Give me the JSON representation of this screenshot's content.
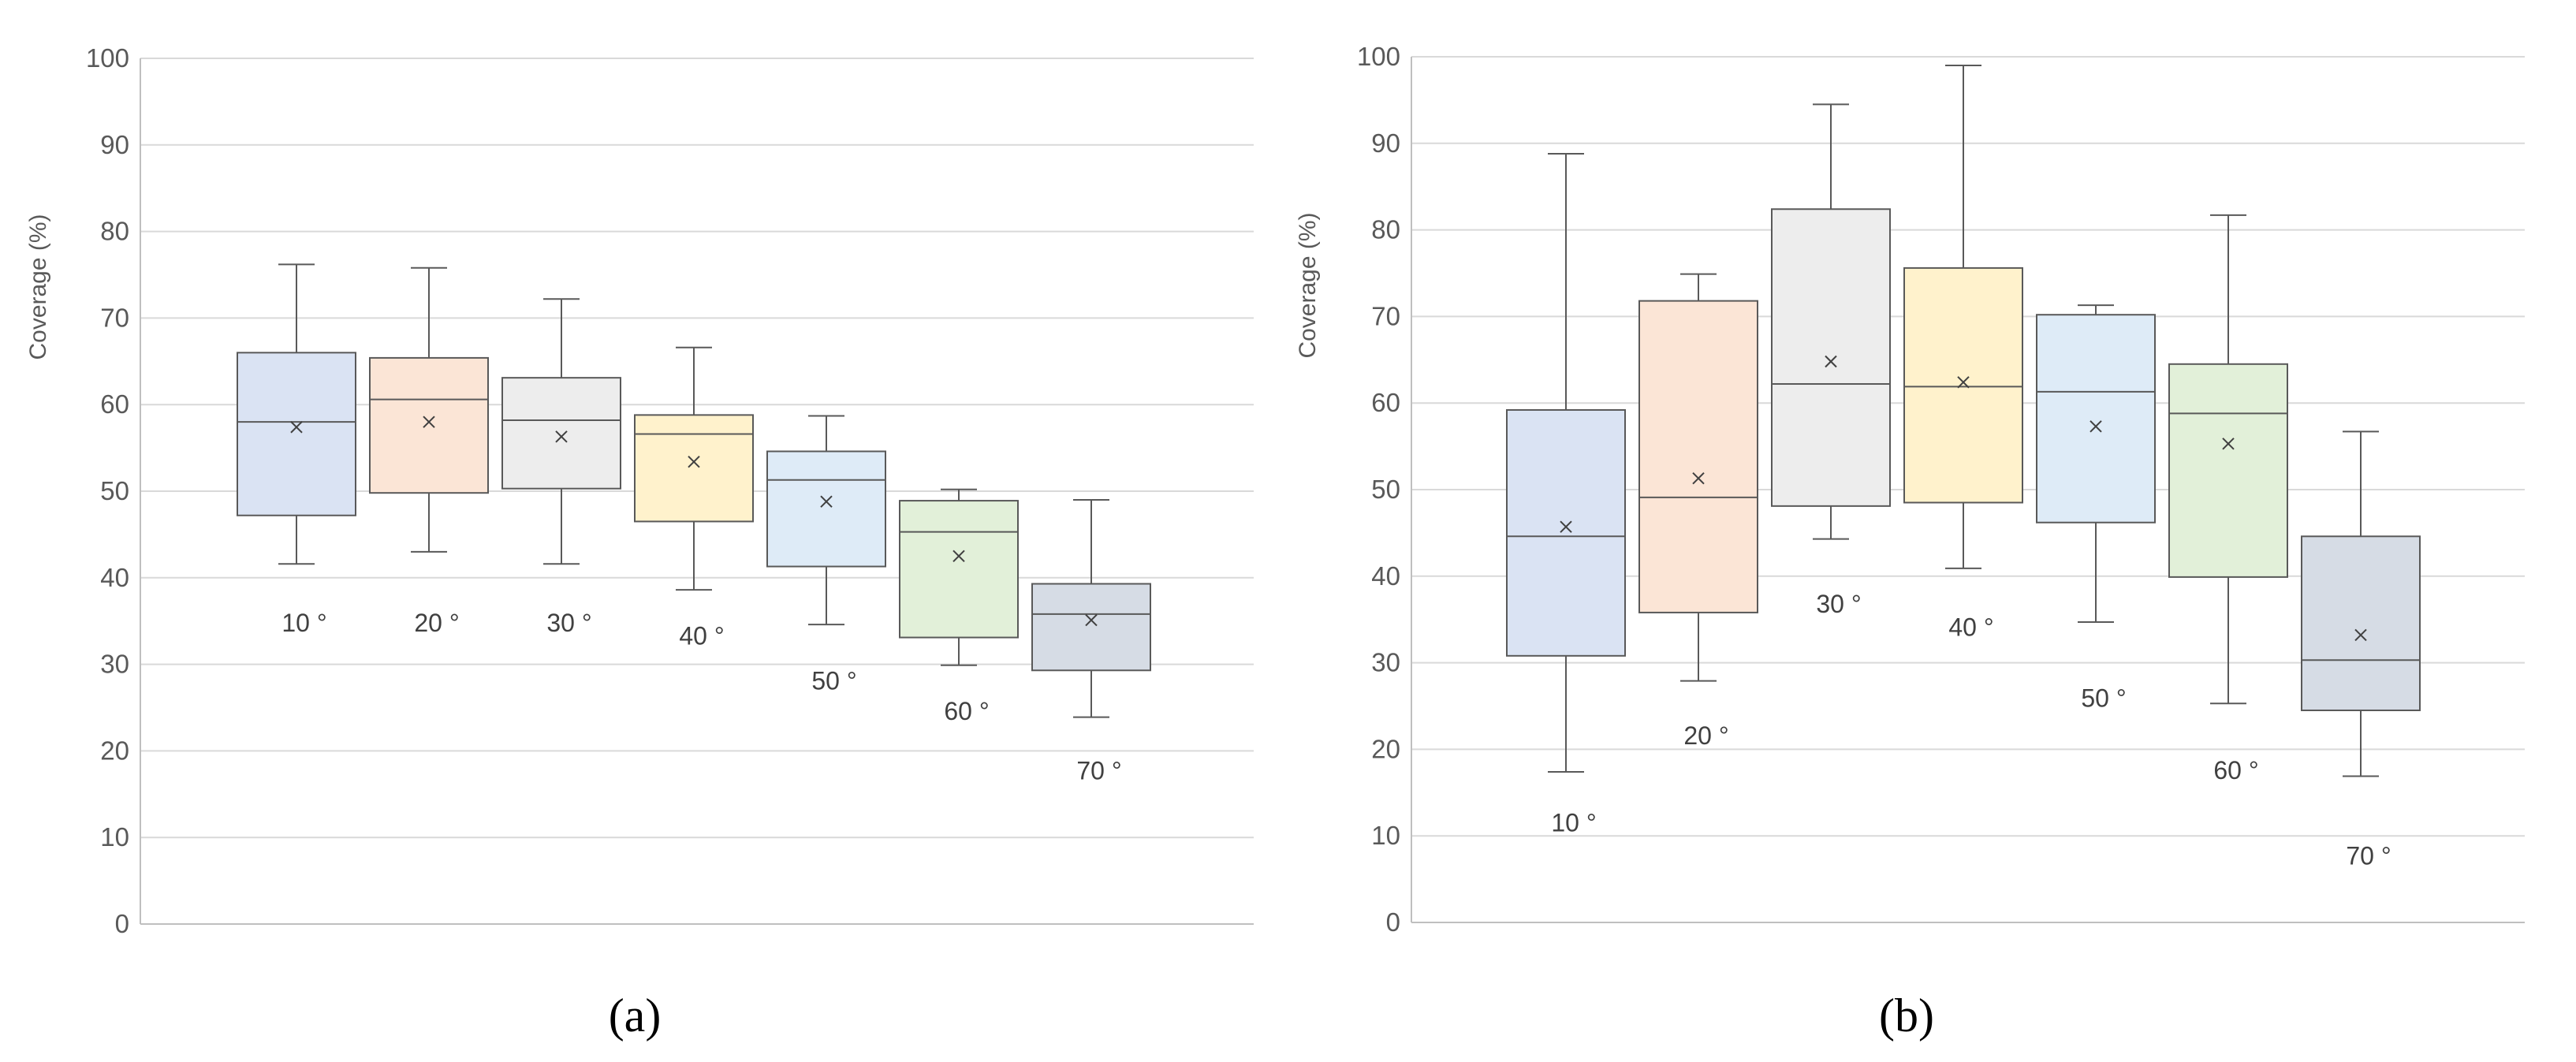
{
  "chart_data": [
    {
      "type": "boxplot",
      "panel_label": "(a)",
      "title": "",
      "xlabel": "",
      "ylabel": "Coverage (%)",
      "ylim": [
        0,
        100
      ],
      "yticks": [
        0,
        10,
        20,
        30,
        40,
        50,
        60,
        70,
        80,
        90,
        100
      ],
      "grid": true,
      "categories": [
        "10 °",
        "20 °",
        "30 °",
        "40 °",
        "50 °",
        "60 °",
        "70 °"
      ],
      "colors": [
        "#dae3f3",
        "#fbe5d6",
        "#ededed",
        "#fff2cc",
        "#deebf7",
        "#e2f0d9",
        "#d6dce5"
      ],
      "boxes": [
        {
          "min": 41.6,
          "q1": 47.2,
          "median": 58.0,
          "q3": 66.0,
          "max": 76.2,
          "mean": 57.4,
          "label_value": 34.8
        },
        {
          "min": 43.0,
          "q1": 49.8,
          "median": 60.6,
          "q3": 65.4,
          "max": 75.8,
          "mean": 58.0,
          "label_value": 34.8
        },
        {
          "min": 41.6,
          "q1": 50.3,
          "median": 58.2,
          "q3": 63.1,
          "max": 72.2,
          "mean": 56.3,
          "label_value": 34.8
        },
        {
          "min": 38.6,
          "q1": 46.5,
          "median": 56.6,
          "q3": 58.8,
          "max": 66.6,
          "mean": 53.4,
          "label_value": 33.3
        },
        {
          "min": 34.6,
          "q1": 41.3,
          "median": 51.3,
          "q3": 54.6,
          "max": 58.7,
          "mean": 48.8,
          "label_value": 28.1
        },
        {
          "min": 29.9,
          "q1": 33.1,
          "median": 45.3,
          "q3": 48.9,
          "max": 50.2,
          "mean": 42.5,
          "label_value": 24.6
        },
        {
          "min": 23.9,
          "q1": 29.3,
          "median": 35.8,
          "q3": 39.3,
          "max": 49.0,
          "mean": 35.1,
          "label_value": 17.7
        }
      ]
    },
    {
      "type": "boxplot",
      "panel_label": "(b)",
      "title": "",
      "xlabel": "",
      "ylabel": "Coverage (%)",
      "ylim": [
        0,
        100
      ],
      "yticks": [
        0,
        10,
        20,
        30,
        40,
        50,
        60,
        70,
        80,
        90,
        100
      ],
      "grid": true,
      "categories": [
        "10 °",
        "20 °",
        "30 °",
        "40 °",
        "50 °",
        "60 °",
        "70 °"
      ],
      "colors": [
        "#dae3f3",
        "#fbe5d6",
        "#ededed",
        "#fff2cc",
        "#deebf7",
        "#e2f0d9",
        "#d6dce5"
      ],
      "boxes": [
        {
          "min": 17.4,
          "q1": 30.8,
          "median": 44.6,
          "q3": 59.2,
          "max": 88.8,
          "mean": 45.7,
          "label_value": 11.5
        },
        {
          "min": 27.9,
          "q1": 35.8,
          "median": 49.1,
          "q3": 71.8,
          "max": 74.9,
          "mean": 51.3,
          "label_value": 21.6
        },
        {
          "min": 44.3,
          "q1": 48.1,
          "median": 62.2,
          "q3": 82.4,
          "max": 94.5,
          "mean": 64.8,
          "label_value": 36.8
        },
        {
          "min": 40.9,
          "q1": 48.5,
          "median": 61.9,
          "q3": 75.6,
          "max": 99.0,
          "mean": 62.4,
          "label_value": 34.1
        },
        {
          "min": 34.7,
          "q1": 46.2,
          "median": 61.3,
          "q3": 70.2,
          "max": 71.3,
          "mean": 57.3,
          "label_value": 25.9
        },
        {
          "min": 25.3,
          "q1": 39.9,
          "median": 58.8,
          "q3": 64.5,
          "max": 81.7,
          "mean": 55.3,
          "label_value": 17.6
        },
        {
          "min": 16.9,
          "q1": 24.5,
          "median": 30.3,
          "q3": 44.6,
          "max": 56.7,
          "mean": 33.2,
          "label_value": 7.7
        }
      ]
    }
  ]
}
